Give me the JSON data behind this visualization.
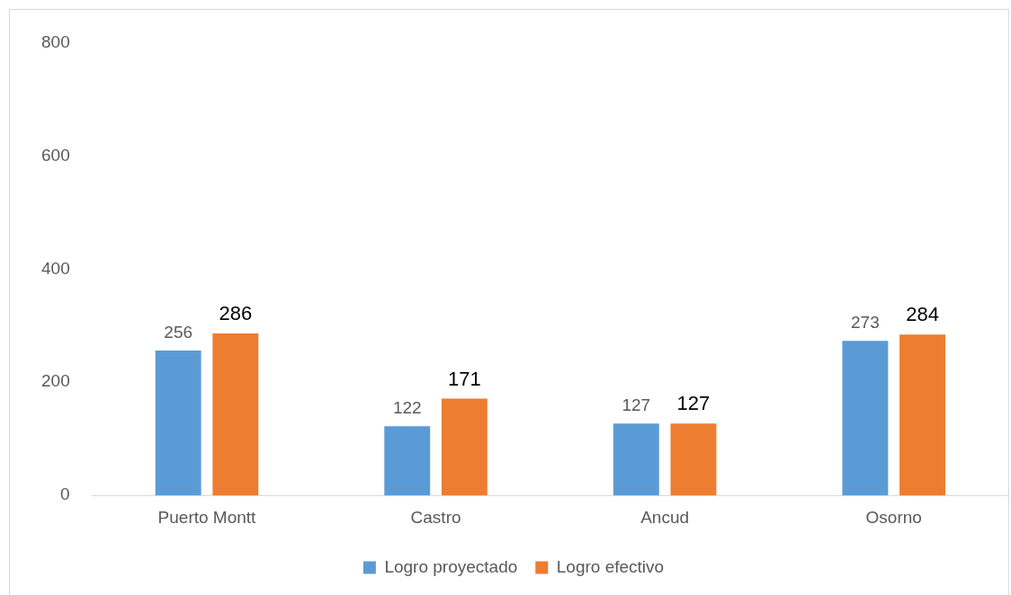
{
  "chart_data": {
    "type": "bar",
    "categories": [
      "Puerto Montt",
      "Castro",
      "Ancud",
      "Osorno"
    ],
    "series": [
      {
        "name": "Logro proyectado",
        "color": "#5b9bd5",
        "values": [
          256,
          122,
          127,
          273
        ]
      },
      {
        "name": "Logro efectivo",
        "color": "#ed7d31",
        "values": [
          286,
          171,
          127,
          284
        ]
      }
    ],
    "ylim": [
      0,
      800
    ],
    "yticks": [
      0,
      200,
      400,
      600,
      800
    ],
    "grid": false,
    "legend": "bottom",
    "data_labels": true
  }
}
